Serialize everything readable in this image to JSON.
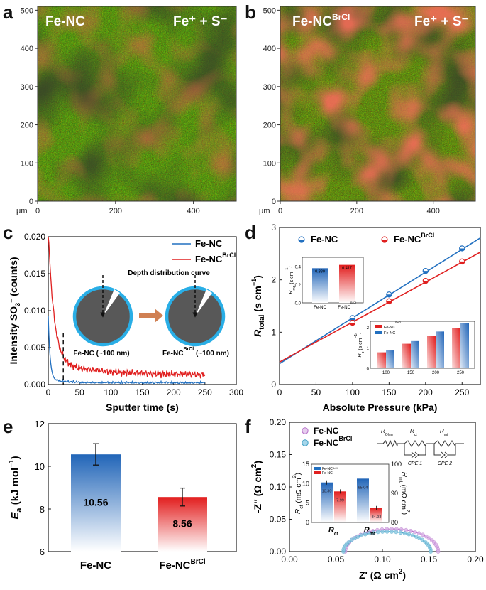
{
  "panel_letters": [
    "a",
    "b",
    "c",
    "d",
    "e",
    "f"
  ],
  "maps": [
    {
      "title_base": "Fe-NC",
      "title_sup": "",
      "legend": "Fe⁺ + S⁻",
      "y_ticks": [
        "500",
        "400",
        "300",
        "200",
        "100",
        "0"
      ],
      "x_ticks": [
        "0",
        "200",
        "400"
      ],
      "unit": "μm"
    },
    {
      "title_base": "Fe-NC",
      "title_sup": "BrCl",
      "legend": "Fe⁺ + S⁻",
      "y_ticks": [
        "500",
        "400",
        "300",
        "200",
        "100",
        "0"
      ],
      "x_ticks": [
        "0",
        "200",
        "400"
      ],
      "unit": "μm"
    }
  ],
  "colors": {
    "fenc": "#2270c0",
    "brcl": "#e02020",
    "shell": "#29aee6",
    "core": "#585858",
    "arrow": "#c86a35"
  },
  "chart_data": [
    {
      "panel": "c",
      "type": "line",
      "xlabel": "Sputter time (s)",
      "ylabel": "Intensity SO3− (counts)",
      "ylabel_parts": [
        "Intensity SO",
        "3",
        "−",
        " (counts)"
      ],
      "xlim": [
        0,
        300
      ],
      "ylim": [
        0,
        0.02
      ],
      "x_ticks": [
        "0",
        "50",
        "100",
        "150",
        "200",
        "250",
        "300"
      ],
      "y_ticks": [
        "0.000",
        "0.005",
        "0.010",
        "0.015",
        "0.020"
      ],
      "series": [
        {
          "name": "Fe-NC",
          "name_sup": ""
        },
        {
          "name": "Fe-NC",
          "name_sup": "BrCl"
        }
      ],
      "annotations": {
        "curve": "Depth distribution curve",
        "left": "Fe-NC (~100 nm)",
        "right_base": "Fe-NC",
        "right_sup": "BrCl",
        "right_tail": " (~100 nm)"
      },
      "dash_x": 24
    },
    {
      "panel": "d",
      "type": "scatter",
      "xlabel": "Absolute Pressure (kPa)",
      "ylabel": "Rtotal (s cm−1)",
      "xlim": [
        0,
        275
      ],
      "ylim": [
        0,
        3
      ],
      "x_ticks": [
        "0",
        "50",
        "100",
        "150",
        "200",
        "250"
      ],
      "y_ticks": [
        "0",
        "1",
        "2",
        "3"
      ],
      "series": [
        {
          "name": "Fe-NC",
          "name_sup": "",
          "x": [
            100,
            150,
            200,
            250
          ],
          "y": [
            1.27,
            1.72,
            2.17,
            2.6
          ],
          "fit": [
            0.4,
            0.00873
          ]
        },
        {
          "name": "Fe-NC",
          "name_sup": "BrCl",
          "x": [
            100,
            150,
            200,
            250
          ],
          "y": [
            1.18,
            1.59,
            1.98,
            2.35
          ],
          "fit": [
            0.43,
            0.00763
          ]
        }
      ],
      "inset_rmp": {
        "ylabel": "Rmp (s cm−1)",
        "categories": [
          "Fe-NC",
          "Fe-NCBrCl"
        ],
        "values": [
          0.38,
          0.417
        ],
        "labels": [
          "0.380",
          "0.417"
        ],
        "ylim": [
          0,
          0.5
        ],
        "y_ticks": [
          "0.0",
          "0.2",
          "0.4"
        ]
      },
      "inset_rp": {
        "ylabel": "Rp (s cm−1)",
        "categories": [
          "100",
          "150",
          "200",
          "250"
        ],
        "y_ticks": [
          "0",
          "1",
          "2"
        ],
        "ylim": [
          0,
          2.3
        ],
        "legend": [
          "Fe-NCBrCl",
          "Fe-NC"
        ],
        "brcl": [
          0.78,
          1.2,
          1.58,
          1.97
        ],
        "fenc": [
          0.87,
          1.33,
          1.8,
          2.2
        ]
      }
    },
    {
      "panel": "e",
      "type": "bar",
      "ylabel": "Ea (kJ mol−1)",
      "ylim": [
        6,
        12
      ],
      "y_ticks": [
        "6",
        "8",
        "10",
        "12"
      ],
      "categories": [
        "Fe-NC",
        "Fe-NCBrCl"
      ],
      "category_base": [
        "Fe-NC",
        "Fe-NC"
      ],
      "category_sup": [
        "",
        "BrCl"
      ],
      "values": [
        10.56,
        8.56
      ],
      "labels": [
        "10.56",
        "8.56"
      ],
      "errors": [
        0.5,
        0.42
      ]
    },
    {
      "panel": "f",
      "type": "scatter",
      "xlabel": "Z' (Ω cm2)",
      "ylabel": "-Z'' (Ω cm2)",
      "xlim": [
        0,
        0.2
      ],
      "ylim": [
        0,
        0.2
      ],
      "x_ticks": [
        "0.00",
        "0.05",
        "0.10",
        "0.15",
        "0.20"
      ],
      "y_ticks": [
        "0.00",
        "0.05",
        "0.10",
        "0.15",
        "0.20"
      ],
      "series": [
        {
          "name": "Fe-NC",
          "name_sup": ""
        },
        {
          "name": "Fe-NC",
          "name_sup": "BrCl"
        }
      ],
      "circuit": {
        "r1": "R",
        "r1_sub": "Ohm",
        "r2": "R",
        "r2_sub": "ct",
        "r3": "R",
        "r3_sub": "mt",
        "c1": "CPE 1",
        "c2": "CPE 2"
      },
      "inset": {
        "left_ylabel": "Rct (mΩ cm2)",
        "right_ylabel": "Rmt (mΩ cm2)",
        "left_ticks": [
          "0",
          "5",
          "10",
          "15"
        ],
        "right_ticks": [
          "80",
          "90",
          "100"
        ],
        "groups": [
          "Rct",
          "Rmt"
        ],
        "group_base": [
          "R",
          "R"
        ],
        "group_sub": [
          "ct",
          "mt"
        ],
        "legend": [
          "Fe-NC",
          "Fe-NCBrCl"
        ],
        "rct": [
          10.3,
          7.99
        ],
        "rct_labels": [
          "10.30",
          "7.99"
        ],
        "rmt": [
          95.04,
          84.93
        ],
        "rmt_labels": [
          "95.04",
          "84.93"
        ]
      }
    }
  ]
}
